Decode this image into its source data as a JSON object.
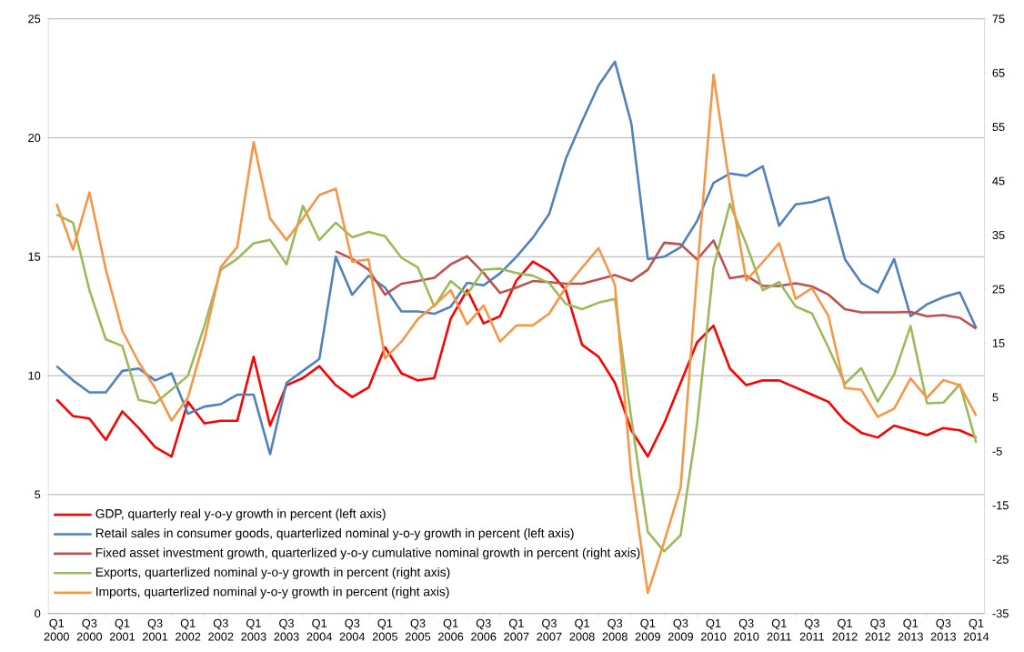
{
  "chart_data": {
    "type": "line",
    "categories": [
      "Q1 2000",
      null,
      "Q3 2000",
      null,
      "Q1 2001",
      null,
      "Q3 2001",
      null,
      "Q1 2002",
      null,
      "Q3 2002",
      null,
      "Q1 2003",
      null,
      "Q3 2003",
      null,
      "Q1 2004",
      null,
      "Q3 2004",
      null,
      "Q1 2005",
      null,
      "Q3 2005",
      null,
      "Q1 2006",
      null,
      "Q3 2006",
      null,
      "Q1 2007",
      null,
      "Q3 2007",
      null,
      "Q1 2008",
      null,
      "Q3 2008",
      null,
      "Q1 2009",
      null,
      "Q3 2009",
      null,
      "Q1 2010",
      null,
      "Q3 2010",
      null,
      "Q1 2011",
      null,
      "Q3 2011",
      null,
      "Q1 2012",
      null,
      "Q3 2012",
      null,
      "Q1 2013",
      null,
      "Q3 2013",
      null,
      "Q1 2014"
    ],
    "series": [
      {
        "name": "GDP, quarterly real y-o-y growth in percent (left axis)",
        "color": "#ff0000",
        "values": [
          9.0,
          8.3,
          8.2,
          7.3,
          8.5,
          7.8,
          7.0,
          6.6,
          8.9,
          8.0,
          8.1,
          8.1,
          10.8,
          7.9,
          9.6,
          9.9,
          10.4,
          9.6,
          9.1,
          9.5,
          11.2,
          10.1,
          9.8,
          9.9,
          12.4,
          13.6,
          12.2,
          12.5,
          14.0,
          14.8,
          14.4,
          13.6,
          11.3,
          10.8,
          9.7,
          7.7,
          6.6,
          8.0,
          9.7,
          11.4,
          12.1,
          10.3,
          9.6,
          9.8,
          9.8,
          9.5,
          9.2,
          8.9,
          8.1,
          7.6,
          7.4,
          7.9,
          7.7,
          7.5,
          7.8,
          7.7,
          7.4
        ]
      },
      {
        "name": "Retail sales in consumer goods, quarterlized nominal y-o-y growth in percent (left axis)",
        "color": "#4f81bd",
        "values": [
          10.4,
          9.8,
          9.3,
          9.3,
          10.2,
          10.3,
          9.8,
          10.1,
          8.4,
          8.7,
          8.8,
          9.2,
          9.2,
          6.7,
          9.7,
          10.2,
          10.7,
          15.0,
          13.4,
          14.2,
          13.7,
          12.7,
          12.7,
          12.6,
          12.9,
          13.9,
          13.8,
          14.3,
          15.0,
          15.8,
          16.8,
          19.1,
          20.7,
          22.2,
          23.2,
          20.6,
          14.9,
          15.0,
          15.4,
          16.5,
          18.1,
          18.5,
          18.4,
          18.8,
          16.3,
          17.2,
          17.3,
          17.5,
          14.9,
          13.9,
          13.5,
          14.9,
          12.5,
          13.0,
          13.3,
          13.5,
          12.0
        ]
      },
      {
        "name": "Fixed asset investment growth, quarterlized y-o-y cumulative nominal growth in percent (right axis)",
        "color": "#c0504d",
        "axis": "y2",
        "values": [
          null,
          null,
          null,
          null,
          null,
          null,
          null,
          null,
          null,
          null,
          null,
          null,
          null,
          null,
          null,
          null,
          null,
          32.0,
          30.6,
          28.6,
          24.0,
          26.0,
          26.5,
          27.1,
          29.6,
          31.1,
          28.0,
          24.3,
          25.3,
          26.5,
          26.3,
          26.0,
          26.0,
          26.8,
          27.6,
          26.5,
          28.6,
          33.6,
          33.3,
          30.5,
          34.0,
          27.0,
          27.5,
          25.6,
          25.6,
          26.1,
          25.5,
          24.0,
          21.3,
          20.7,
          20.7,
          20.7,
          20.8,
          20.0,
          20.2,
          19.7,
          17.7
        ]
      },
      {
        "name": "Exports, quarterlized nominal y-o-y growth in percent (right axis)",
        "color": "#9bbb59",
        "axis": "y2",
        "values": [
          38.8,
          37.3,
          24.8,
          15.7,
          14.5,
          4.5,
          3.9,
          6.4,
          9.0,
          18.2,
          28.6,
          30.6,
          33.5,
          34.1,
          29.6,
          40.4,
          34.1,
          37.3,
          34.6,
          35.6,
          34.8,
          30.8,
          29.0,
          21.8,
          26.5,
          24.0,
          28.6,
          28.8,
          28.0,
          27.5,
          26.1,
          22.3,
          21.3,
          22.5,
          23.2,
          1.0,
          -19.9,
          -23.5,
          -20.5,
          0.0,
          29.0,
          40.8,
          33.3,
          24.8,
          26.3,
          21.8,
          20.5,
          14.2,
          7.5,
          10.4,
          4.2,
          9.2,
          18.2,
          3.9,
          4.0,
          7.4,
          -3.4
        ]
      },
      {
        "name": "Imports, quarterlized nominal y-o-y growth in percent (right axis)",
        "color": "#f79646",
        "axis": "y2",
        "values": [
          40.8,
          32.3,
          42.9,
          28.6,
          17.3,
          11.5,
          6.7,
          0.7,
          5.0,
          15.7,
          29.1,
          32.8,
          52.2,
          38.1,
          34.1,
          38.1,
          42.4,
          43.6,
          30.1,
          30.5,
          12.2,
          15.3,
          19.5,
          22.0,
          24.8,
          18.5,
          22.0,
          15.3,
          18.3,
          18.3,
          20.5,
          25.3,
          29.0,
          32.6,
          25.8,
          -9.6,
          -31.2,
          -21.7,
          -11.7,
          28.0,
          64.7,
          44.0,
          26.6,
          30.0,
          33.5,
          23.2,
          25.2,
          20.0,
          6.7,
          6.4,
          1.4,
          2.9,
          8.5,
          4.9,
          8.2,
          7.2,
          1.6
        ]
      }
    ],
    "ylim": [
      0,
      25
    ],
    "yticks": [
      0,
      5,
      10,
      15,
      20,
      25
    ],
    "y2lim": [
      -35,
      75
    ],
    "y2ticks": [
      -35,
      -25,
      -15,
      -5,
      5,
      15,
      25,
      35,
      45,
      55,
      65,
      75
    ],
    "grid": "y",
    "legend": "bottom left"
  }
}
